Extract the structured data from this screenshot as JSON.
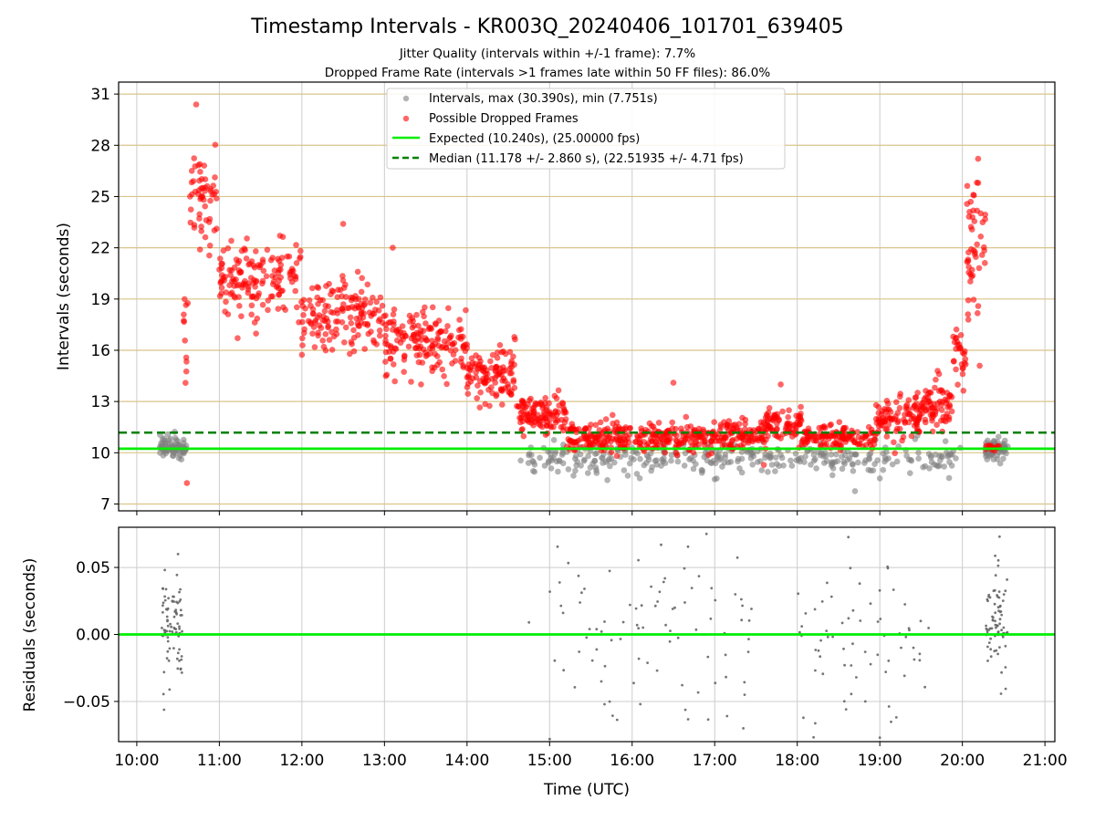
{
  "figure": {
    "title": "Timestamp Intervals - KR003Q_20240406_101701_639405",
    "subtitle_1": "Jitter Quality (intervals within +/-1 frame): 7.7%",
    "subtitle_2": "Dropped Frame Rate (intervals >1 frames late within 50 FF files): 86.0%",
    "xlabel": "Time (UTC)"
  },
  "colors": {
    "intervals": "#808080",
    "dropped": "#ff0000",
    "expected": "#00ee00",
    "median": "#008000",
    "gridline_top": "#d9c48a",
    "gridline_vertical": "#cccccc"
  },
  "chart_data": [
    {
      "type": "scatter",
      "ylabel": "Intervals (seconds)",
      "x_unit": "hours UTC",
      "xlim": [
        9.78,
        21.12
      ],
      "ylim": [
        6.6,
        31.7
      ],
      "x_ticks": [
        10,
        11,
        12,
        13,
        14,
        15,
        16,
        17,
        18,
        19,
        20,
        21
      ],
      "y_ticks": [
        7,
        10,
        13,
        16,
        19,
        22,
        25,
        28,
        31
      ],
      "y_tick_labels": [
        "7",
        "10",
        "13",
        "16",
        "19",
        "22",
        "25",
        "28",
        "31"
      ],
      "grid": "horizontal + vertical",
      "legend_position": "top-center",
      "legend": [
        {
          "label": "Intervals, max (30.390s), min (7.751s)",
          "marker": "circle",
          "color": "#808080"
        },
        {
          "label": "Possible Dropped Frames",
          "marker": "circle",
          "color": "#ff0000"
        },
        {
          "label": "Expected (10.240s), (25.00000 fps)",
          "marker": "solid-line",
          "color": "#00ee00"
        },
        {
          "label": "Median (11.178 +/- 2.860 s), (22.51935 +/- 4.71 fps)",
          "marker": "dashed-line",
          "color": "#008000"
        }
      ],
      "reference_lines": {
        "expected": 10.24,
        "median": 11.178
      },
      "series": [
        {
          "name": "Intervals",
          "style": "gray-points",
          "clusters": [
            {
              "x_range": [
                10.28,
                10.6
              ],
              "y_mean": 10.25,
              "y_spread": 0.35,
              "count": 80
            },
            {
              "x_range": [
                14.7,
                20.0
              ],
              "y_mean": 9.7,
              "y_spread": 0.55,
              "count": 330
            },
            {
              "x_range": [
                20.28,
                20.55
              ],
              "y_mean": 10.2,
              "y_spread": 0.35,
              "count": 70
            }
          ],
          "extra_points": [
            [
              18.7,
              7.751
            ],
            [
              14.65,
              9.55
            ],
            [
              15.7,
              8.4
            ],
            [
              17.0,
              8.45
            ],
            [
              19.0,
              8.5
            ]
          ]
        },
        {
          "name": "Possible Dropped Frames",
          "style": "red-points",
          "trend": [
            [
              10.55,
              12.0
            ],
            [
              10.6,
              18.0
            ],
            [
              10.65,
              22.5
            ],
            [
              10.75,
              25.2
            ],
            [
              10.9,
              23.5
            ],
            [
              11.0,
              21.0
            ],
            [
              11.5,
              19.8
            ],
            [
              12.0,
              18.6
            ],
            [
              12.5,
              17.3
            ],
            [
              13.0,
              16.6
            ],
            [
              13.5,
              16.2
            ],
            [
              14.0,
              15.0
            ],
            [
              14.5,
              13.4
            ],
            [
              15.0,
              12.0
            ],
            [
              15.5,
              11.0
            ],
            [
              16.0,
              10.8
            ],
            [
              16.5,
              10.9
            ],
            [
              17.0,
              10.8
            ],
            [
              17.5,
              10.9
            ],
            [
              17.8,
              11.6
            ],
            [
              18.2,
              11.2
            ],
            [
              18.6,
              10.9
            ],
            [
              19.0,
              11.4
            ],
            [
              19.5,
              12.3
            ],
            [
              19.8,
              13.6
            ],
            [
              20.0,
              16.5
            ],
            [
              20.1,
              20.5
            ],
            [
              20.2,
              23.5
            ],
            [
              20.27,
              20.0
            ],
            [
              20.3,
              10.5
            ]
          ],
          "clusters": [
            {
              "x_range": [
                10.55,
                10.62
              ],
              "y_mean": 15.0,
              "y_spread": 3.0,
              "count": 12
            },
            {
              "x_range": [
                10.63,
                10.98
              ],
              "y_mean": 24.8,
              "y_spread": 1.7,
              "count": 55
            },
            {
              "x_range": [
                11.0,
                12.0
              ],
              "y_mean": 20.0,
              "y_spread": 1.4,
              "count": 150
            },
            {
              "x_range": [
                12.0,
                13.0
              ],
              "y_mean": 18.0,
              "y_spread": 1.3,
              "count": 150
            },
            {
              "x_range": [
                13.0,
                14.0
              ],
              "y_mean": 16.5,
              "y_spread": 1.2,
              "count": 160
            },
            {
              "x_range": [
                14.0,
                14.6
              ],
              "y_mean": 14.6,
              "y_spread": 1.0,
              "count": 110
            },
            {
              "x_range": [
                14.6,
                15.2
              ],
              "y_mean": 12.3,
              "y_spread": 0.7,
              "count": 110
            },
            {
              "x_range": [
                15.2,
                17.6
              ],
              "y_mean": 10.9,
              "y_spread": 0.55,
              "count": 380
            },
            {
              "x_range": [
                17.6,
                18.05
              ],
              "y_mean": 11.6,
              "y_spread": 0.7,
              "count": 80
            },
            {
              "x_range": [
                18.05,
                18.95
              ],
              "y_mean": 10.9,
              "y_spread": 0.45,
              "count": 130
            },
            {
              "x_range": [
                18.95,
                19.5
              ],
              "y_mean": 11.9,
              "y_spread": 0.8,
              "count": 100
            },
            {
              "x_range": [
                19.5,
                19.88
              ],
              "y_mean": 12.6,
              "y_spread": 0.8,
              "count": 70
            },
            {
              "x_range": [
                19.88,
                20.05
              ],
              "y_mean": 15.8,
              "y_spread": 1.6,
              "count": 28
            },
            {
              "x_range": [
                20.05,
                20.28
              ],
              "y_mean": 22.0,
              "y_spread": 2.6,
              "count": 50
            },
            {
              "x_range": [
                20.28,
                20.45
              ],
              "y_mean": 10.35,
              "y_spread": 0.12,
              "count": 14
            }
          ],
          "extra_points": [
            [
              10.72,
              30.39
            ],
            [
              12.5,
              23.4
            ],
            [
              13.1,
              22.0
            ],
            [
              16.5,
              14.1
            ],
            [
              17.8,
              14.0
            ],
            [
              19.7,
              14.8
            ]
          ]
        }
      ]
    },
    {
      "type": "scatter",
      "ylabel": "Residuals (seconds)",
      "xlabel": "Time (UTC)",
      "xlim": [
        9.78,
        21.12
      ],
      "ylim": [
        -0.08,
        0.08
      ],
      "x_ticks": [
        10,
        11,
        12,
        13,
        14,
        15,
        16,
        17,
        18,
        19,
        20,
        21
      ],
      "x_tick_labels": [
        "10:00",
        "11:00",
        "12:00",
        "13:00",
        "14:00",
        "15:00",
        "16:00",
        "17:00",
        "18:00",
        "19:00",
        "20:00",
        "21:00"
      ],
      "y_ticks": [
        -0.05,
        0.0,
        0.05
      ],
      "y_tick_labels": [
        "−0.05",
        "0.00",
        "0.05"
      ],
      "grid": "horizontal + vertical",
      "reference_lines": {
        "zero": 0.0
      },
      "series": [
        {
          "name": "Residuals",
          "style": "small-gray-dots",
          "clusters": [
            {
              "x_range": [
                10.3,
                10.55
              ],
              "y_mean": 0.008,
              "y_spread": 0.022,
              "count": 85
            },
            {
              "x_range": [
                15.0,
                17.5
              ],
              "y_mean": -0.005,
              "y_spread": 0.045,
              "count": 90
            },
            {
              "x_range": [
                18.0,
                19.6
              ],
              "y_mean": -0.01,
              "y_spread": 0.045,
              "count": 70
            },
            {
              "x_range": [
                20.28,
                20.55
              ],
              "y_mean": 0.01,
              "y_spread": 0.025,
              "count": 75
            }
          ],
          "extra_points": [
            [
              14.75,
              0.009
            ],
            [
              10.5,
              0.06
            ],
            [
              16.9,
              0.075
            ],
            [
              19.0,
              -0.077
            ],
            [
              20.45,
              0.073
            ]
          ]
        }
      ]
    }
  ]
}
